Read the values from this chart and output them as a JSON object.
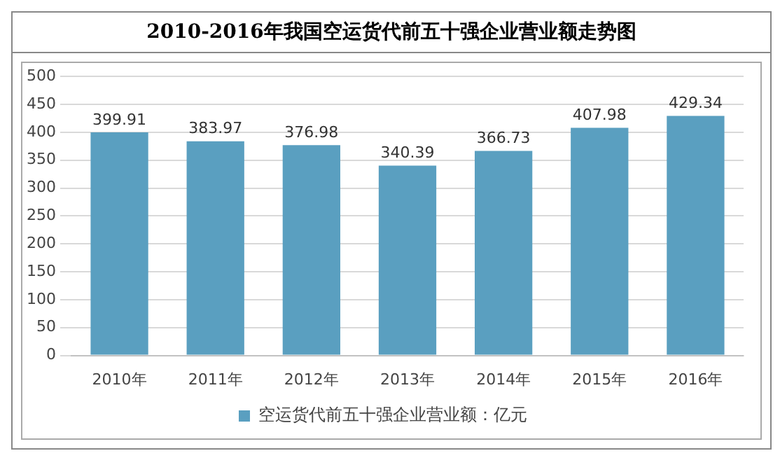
{
  "chart_data": {
    "type": "bar",
    "title": "2010-2016年我国空运货代前五十强企业营业额走势图",
    "categories": [
      "2010年",
      "2011年",
      "2012年",
      "2013年",
      "2014年",
      "2015年",
      "2016年"
    ],
    "series": [
      {
        "name": "空运货代前五十强企业营业额：亿元",
        "color": "#5a9fc0",
        "values": [
          399.91,
          383.97,
          376.98,
          340.39,
          366.73,
          407.98,
          429.34
        ]
      }
    ],
    "ylim": [
      0,
      500
    ],
    "yticks": [
      0,
      50,
      100,
      150,
      200,
      250,
      300,
      350,
      400,
      450,
      500
    ],
    "grid": "y",
    "legend": "bottom",
    "data_labels": true
  }
}
